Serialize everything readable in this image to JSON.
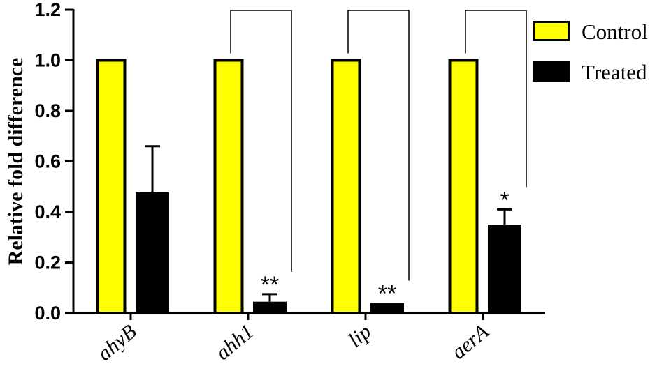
{
  "chart_data": {
    "type": "bar",
    "title": "",
    "xlabel": "",
    "ylabel": "Relative fold difference",
    "ylim": [
      0,
      1.2
    ],
    "yticks": [
      0.0,
      0.2,
      0.4,
      0.6,
      0.8,
      1.0,
      1.2
    ],
    "ytick_labels": [
      "0.0",
      "0.2",
      "0.4",
      "0.6",
      "0.8",
      "1.0",
      "1.2"
    ],
    "categories": [
      "ahyB",
      "ahh1",
      "lip",
      "aerA"
    ],
    "series": [
      {
        "name": "Control",
        "color": "#ffff00",
        "edge": "#000000",
        "values": [
          1.0,
          1.0,
          1.0,
          1.0
        ],
        "errors": [
          0,
          0,
          0,
          0
        ]
      },
      {
        "name": "Treated",
        "color": "#000000",
        "edge": "#000000",
        "values": [
          0.48,
          0.045,
          0.04,
          0.35
        ],
        "errors": [
          0.18,
          0.03,
          0.0,
          0.06
        ]
      }
    ],
    "significance": [
      "",
      "**",
      "**",
      "*"
    ],
    "comparison_brackets": [
      false,
      true,
      true,
      true
    ],
    "legend_position": "top-right",
    "grid": false
  }
}
